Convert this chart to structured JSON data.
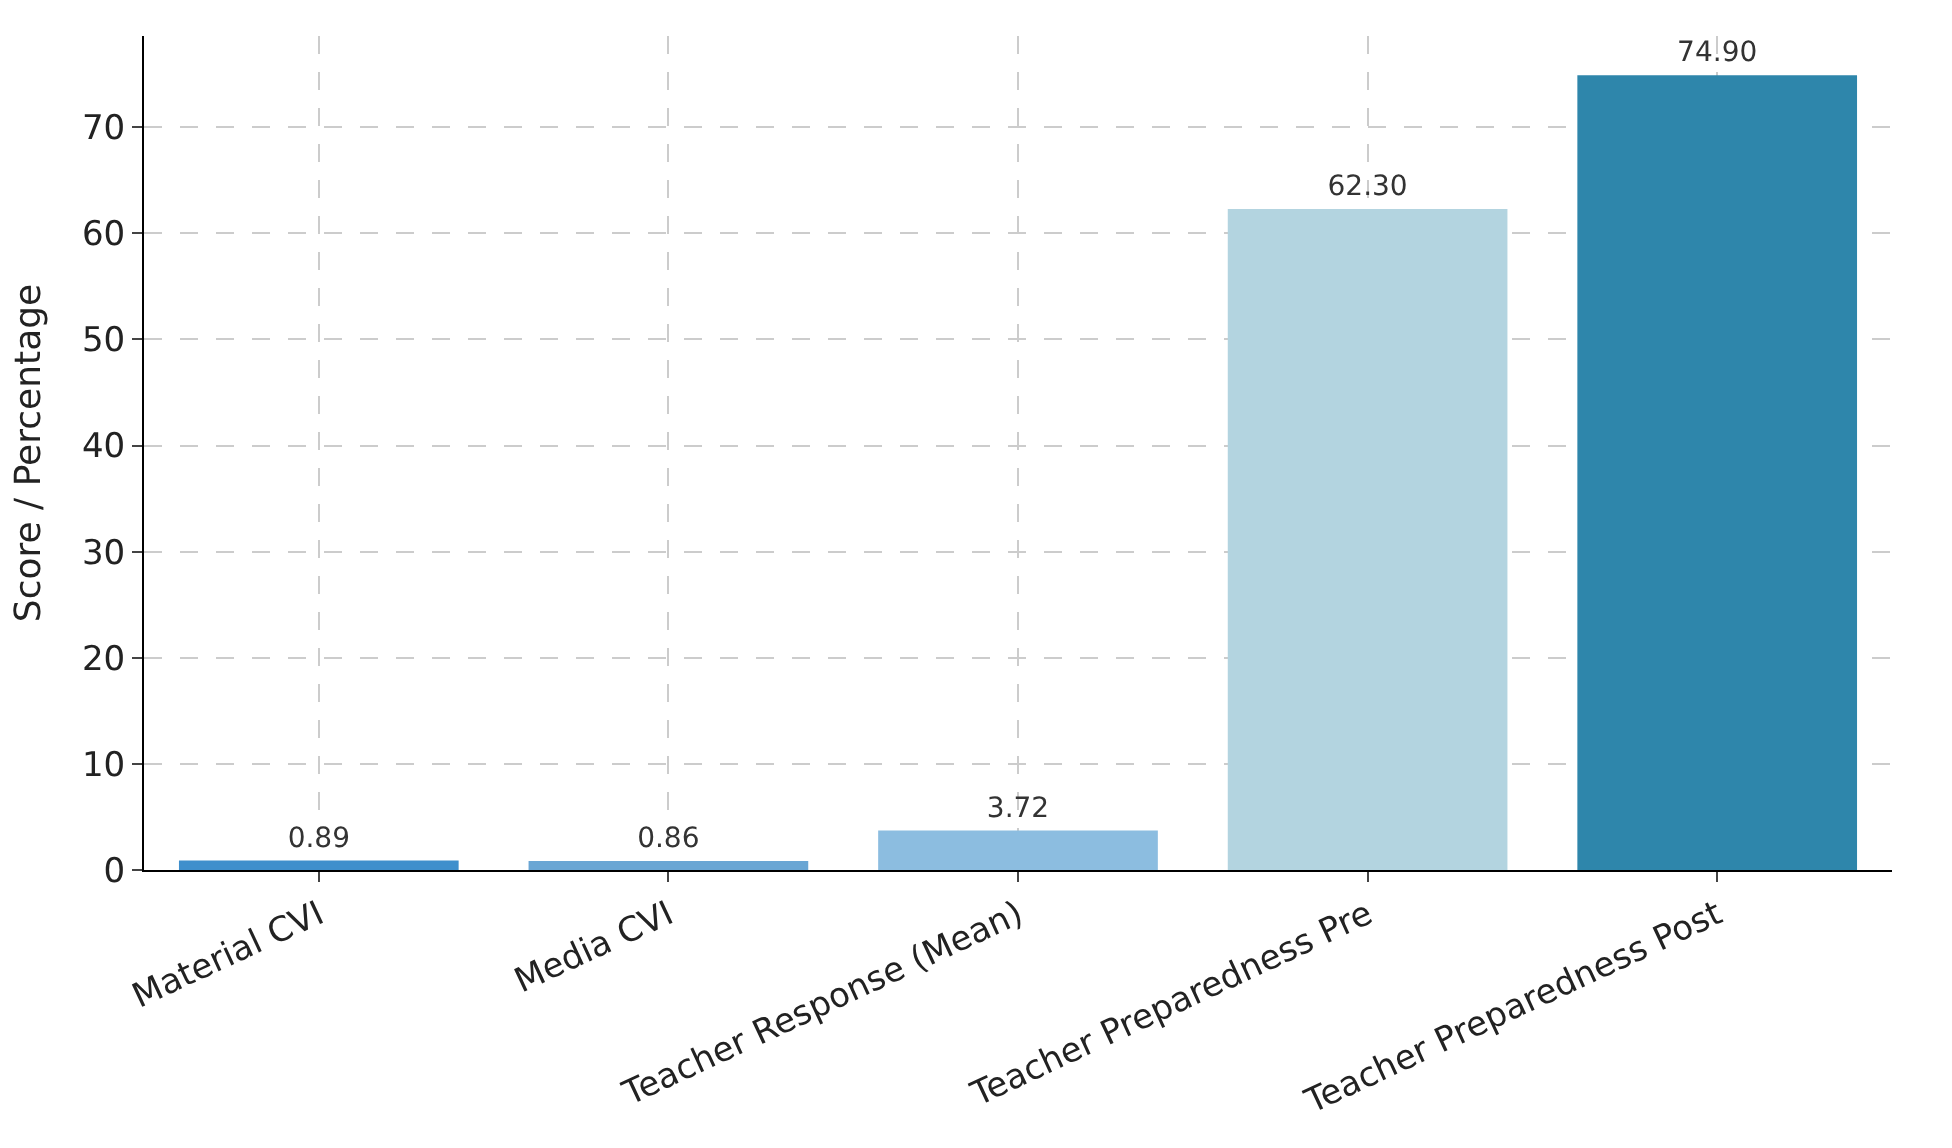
{
  "chart_data": {
    "type": "bar",
    "ylabel": "Score / Percentage",
    "categories": [
      "Material CVI",
      "Media CVI",
      "Teacher Response (Mean)",
      "Teacher Preparedness Pre",
      "Teacher Preparedness Post"
    ],
    "values": [
      0.89,
      0.86,
      3.72,
      62.3,
      74.9
    ],
    "value_labels": [
      "0.89",
      "0.86",
      "3.72",
      "62.30",
      "74.90"
    ],
    "colors": [
      "#3f8fcc",
      "#6aa6d4",
      "#8cbde0",
      "#b3d4e0",
      "#2e86ab"
    ],
    "ylim": [
      0,
      78.6
    ],
    "yticks": [
      0,
      10,
      20,
      30,
      40,
      50,
      60,
      70
    ],
    "grid": true,
    "line_style": "dashed"
  }
}
